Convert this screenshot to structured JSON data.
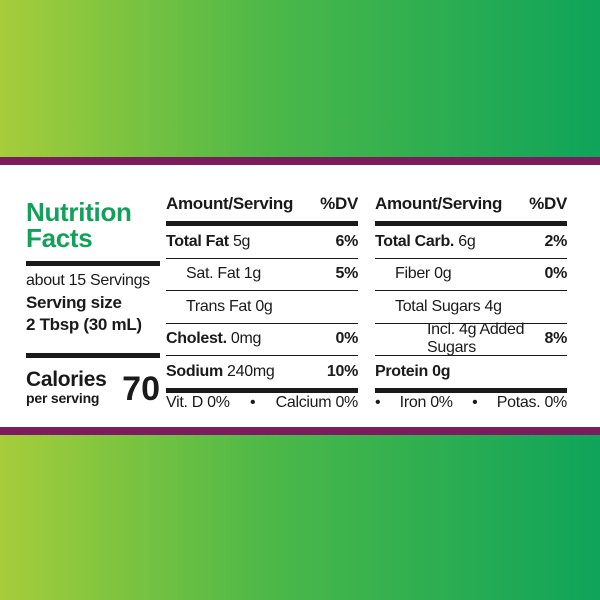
{
  "panel": {
    "title_line1": "Nutrition",
    "title_line2": "Facts",
    "servings_line": "about 15 Servings",
    "serving_size_label": "Serving size",
    "serving_size_value": "2 Tbsp (30 mL)",
    "calories_label": "Calories",
    "calories_sub": "per serving",
    "calories_value": "70"
  },
  "left_table": {
    "header_amount": "Amount/Serving",
    "header_dv": "%DV",
    "rows": [
      {
        "name": "Total Fat",
        "amount": "5g",
        "dv": "6%"
      },
      {
        "name": "Sat. Fat 1g",
        "dv": "5%"
      },
      {
        "name": "Trans Fat 0g",
        "dv": ""
      },
      {
        "name": "Cholest.",
        "amount": "0mg",
        "dv": "0%"
      },
      {
        "name": "Sodium",
        "amount": "240mg",
        "dv": "10%"
      }
    ],
    "footer_left": "Vit. D 0%",
    "footer_sep": "•",
    "footer_right": "Calcium 0%"
  },
  "right_table": {
    "header_amount": "Amount/Serving",
    "header_dv": "%DV",
    "rows": [
      {
        "name": "Total Carb.",
        "amount": "6g",
        "dv": "2%"
      },
      {
        "name": "Fiber 0g",
        "dv": "0%"
      },
      {
        "name": "Total Sugars 4g",
        "dv": ""
      },
      {
        "name": "Incl. 4g Added Sugars",
        "dv": "8%"
      },
      {
        "name": "Protein 0g",
        "dv": ""
      }
    ],
    "footer_sep1": "•",
    "footer_left": "Iron 0%",
    "footer_sep2": "•",
    "footer_right": "Potas. 0%"
  },
  "colors": {
    "brand_green": "#14a05a",
    "band_purple": "#7b1c5f",
    "bg_gradient_left": "#a6cd3a",
    "bg_gradient_right": "#0fa45a"
  }
}
